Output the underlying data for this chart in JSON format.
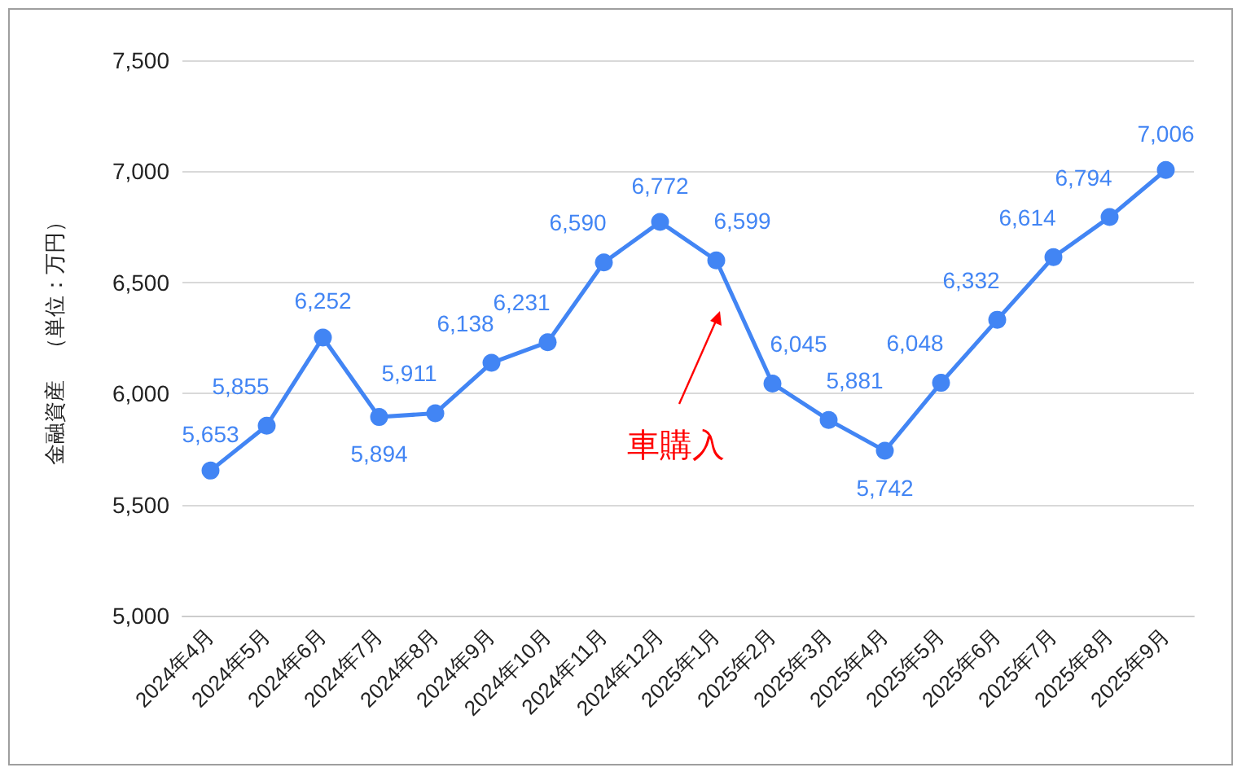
{
  "chart_data": {
    "type": "line",
    "ylabel": "金融資産　（単位：万円）",
    "categories": [
      "2024年4月",
      "2024年5月",
      "2024年6月",
      "2024年7月",
      "2024年8月",
      "2024年9月",
      "2024年10月",
      "2024年11月",
      "2024年12月",
      "2025年1月",
      "2025年2月",
      "2025年3月",
      "2025年4月",
      "2025年5月",
      "2025年6月",
      "2025年7月",
      "2025年8月",
      "2025年9月"
    ],
    "values": [
      5653,
      5855,
      6252,
      5894,
      5911,
      6138,
      6231,
      6590,
      6772,
      6599,
      6045,
      5881,
      5742,
      6048,
      6332,
      6614,
      6794,
      7006
    ],
    "value_labels": [
      "5,653",
      "5,855",
      "6,252",
      "5,894",
      "5,911",
      "6,138",
      "6,231",
      "6,590",
      "6,772",
      "6,599",
      "6,045",
      "5,881",
      "5,742",
      "6,048",
      "6,332",
      "6,614",
      "6,794",
      "7,006"
    ],
    "color": "#4285f4",
    "ylim": [
      5000,
      7500
    ],
    "yticks": [
      {
        "value": 5000,
        "label": "5,000"
      },
      {
        "value": 5500,
        "label": "5,500"
      },
      {
        "value": 6000,
        "label": "6,000"
      },
      {
        "value": 6500,
        "label": "6,500"
      },
      {
        "value": 7000,
        "label": "7,000"
      },
      {
        "value": 7500,
        "label": "7,500"
      }
    ],
    "grid": "y",
    "marker": "circle",
    "line_style": "solid",
    "annotations": [
      "車購入"
    ]
  }
}
